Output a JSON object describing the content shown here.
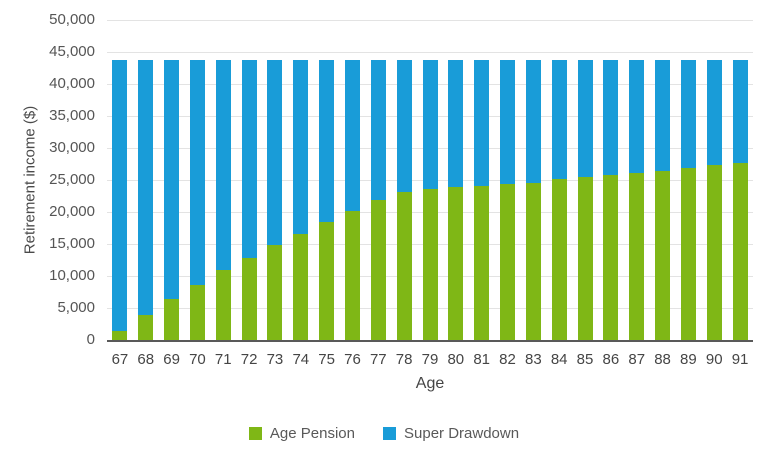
{
  "chart_data": {
    "type": "bar",
    "stacked": true,
    "title": "",
    "xlabel": "Age",
    "ylabel": "Retirement income ($)",
    "ylim": [
      0,
      50000
    ],
    "ytick_step": 5000,
    "ytick_labels": [
      "0",
      "5,000",
      "10,000",
      "15,000",
      "20,000",
      "25,000",
      "30,000",
      "35,000",
      "40,000",
      "45,000",
      "50,000"
    ],
    "grid": true,
    "legend_position": "bottom",
    "total_per_bar_approx": 43700,
    "categories": [
      "67",
      "68",
      "69",
      "70",
      "71",
      "72",
      "73",
      "74",
      "75",
      "76",
      "77",
      "78",
      "79",
      "80",
      "81",
      "82",
      "83",
      "84",
      "85",
      "86",
      "87",
      "88",
      "89",
      "90",
      "91"
    ],
    "series": [
      {
        "name": "Age Pension",
        "color": "#7fb716",
        "values": [
          1400,
          3900,
          6400,
          8600,
          10900,
          12800,
          14900,
          16600,
          18500,
          20100,
          21800,
          23100,
          23600,
          23900,
          24100,
          24300,
          24500,
          25100,
          25400,
          25800,
          26100,
          26400,
          26800,
          27300,
          27600
        ]
      },
      {
        "name": "Super Drawdown",
        "color": "#199cd8",
        "values": [
          42300,
          39800,
          37300,
          35100,
          32800,
          30900,
          28800,
          27100,
          25200,
          23600,
          21900,
          20600,
          20100,
          19800,
          19600,
          19400,
          19200,
          18600,
          18300,
          17900,
          17600,
          17300,
          16900,
          16400,
          16100
        ]
      }
    ]
  },
  "colors": {
    "grid_line": "#e3e3e3",
    "axis_line": "#595959",
    "tick_text": "#555555",
    "background": "#ffffff"
  }
}
